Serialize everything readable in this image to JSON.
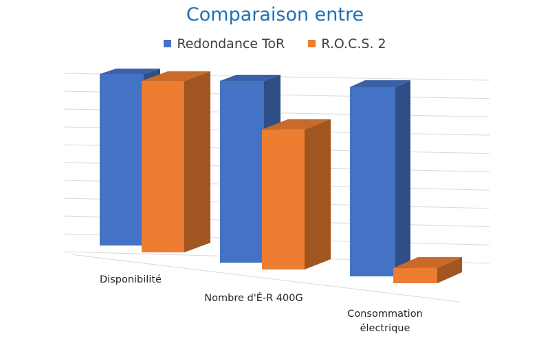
{
  "chart_data": {
    "type": "bar",
    "title": "Comparaison entre",
    "categories": [
      "Disponibilité",
      "Nombre d'É-R 400G",
      "Consommation\nélectrique"
    ],
    "series": [
      {
        "name": "Redondance ToR",
        "values": [
          100,
          100,
          100
        ],
        "color": "#4472c4"
      },
      {
        "name": "R.O.C.S. 2",
        "values": [
          100,
          77,
          8
        ],
        "color": "#ed7d31"
      }
    ],
    "ylim": [
      0,
      100
    ],
    "legend_position": "top",
    "grid": true,
    "style": "3d-clustered-column"
  }
}
